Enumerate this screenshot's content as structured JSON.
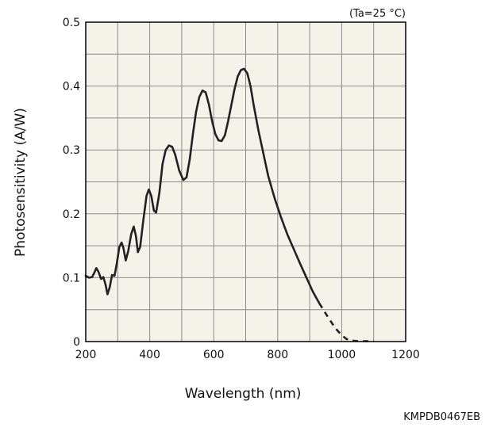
{
  "chart_data": {
    "type": "line",
    "condition_note": "(Ta=25 °C)",
    "xlabel": "Wavelength (nm)",
    "ylabel": "Photosensitivity (A/W)",
    "doc_code": "KMPDB0467EB",
    "xlim": [
      200,
      1200
    ],
    "ylim": [
      0,
      0.5
    ],
    "x_ticks": [
      "200",
      "400",
      "600",
      "800",
      "1000",
      "1200"
    ],
    "y_ticks": [
      "0",
      "0.1",
      "0.2",
      "0.3",
      "0.4",
      "0.5"
    ],
    "grid": true,
    "background_color": "#f4f3ea",
    "line_color": "#222222",
    "series": [
      {
        "style": "solid",
        "points": [
          [
            200,
            0.103
          ],
          [
            210,
            0.1
          ],
          [
            220,
            0.101
          ],
          [
            228,
            0.109
          ],
          [
            233,
            0.115
          ],
          [
            240,
            0.109
          ],
          [
            248,
            0.098
          ],
          [
            255,
            0.101
          ],
          [
            262,
            0.089
          ],
          [
            268,
            0.074
          ],
          [
            275,
            0.085
          ],
          [
            282,
            0.104
          ],
          [
            290,
            0.103
          ],
          [
            297,
            0.122
          ],
          [
            305,
            0.148
          ],
          [
            312,
            0.155
          ],
          [
            318,
            0.146
          ],
          [
            325,
            0.127
          ],
          [
            333,
            0.142
          ],
          [
            342,
            0.168
          ],
          [
            350,
            0.18
          ],
          [
            357,
            0.165
          ],
          [
            363,
            0.14
          ],
          [
            370,
            0.148
          ],
          [
            380,
            0.19
          ],
          [
            390,
            0.228
          ],
          [
            397,
            0.238
          ],
          [
            405,
            0.228
          ],
          [
            413,
            0.205
          ],
          [
            420,
            0.202
          ],
          [
            430,
            0.232
          ],
          [
            440,
            0.278
          ],
          [
            450,
            0.3
          ],
          [
            460,
            0.307
          ],
          [
            470,
            0.305
          ],
          [
            480,
            0.292
          ],
          [
            492,
            0.268
          ],
          [
            505,
            0.253
          ],
          [
            515,
            0.257
          ],
          [
            525,
            0.285
          ],
          [
            535,
            0.325
          ],
          [
            545,
            0.36
          ],
          [
            555,
            0.383
          ],
          [
            565,
            0.393
          ],
          [
            575,
            0.39
          ],
          [
            585,
            0.371
          ],
          [
            595,
            0.345
          ],
          [
            605,
            0.325
          ],
          [
            615,
            0.315
          ],
          [
            625,
            0.314
          ],
          [
            635,
            0.323
          ],
          [
            645,
            0.345
          ],
          [
            655,
            0.37
          ],
          [
            665,
            0.395
          ],
          [
            675,
            0.415
          ],
          [
            685,
            0.425
          ],
          [
            695,
            0.427
          ],
          [
            705,
            0.42
          ],
          [
            715,
            0.4
          ],
          [
            725,
            0.37
          ],
          [
            740,
            0.33
          ],
          [
            755,
            0.295
          ],
          [
            770,
            0.26
          ],
          [
            790,
            0.225
          ],
          [
            810,
            0.195
          ],
          [
            830,
            0.168
          ],
          [
            850,
            0.145
          ],
          [
            870,
            0.122
          ],
          [
            890,
            0.1
          ],
          [
            910,
            0.078
          ],
          [
            930,
            0.06
          ]
        ]
      },
      {
        "style": "dashed",
        "points": [
          [
            930,
            0.06
          ],
          [
            955,
            0.04
          ],
          [
            980,
            0.021
          ],
          [
            1000,
            0.01
          ],
          [
            1015,
            0.004
          ],
          [
            1030,
            0.0015
          ],
          [
            1050,
            0.0008
          ],
          [
            1080,
            0.0005
          ],
          [
            1100,
            0.0003
          ]
        ]
      }
    ]
  }
}
